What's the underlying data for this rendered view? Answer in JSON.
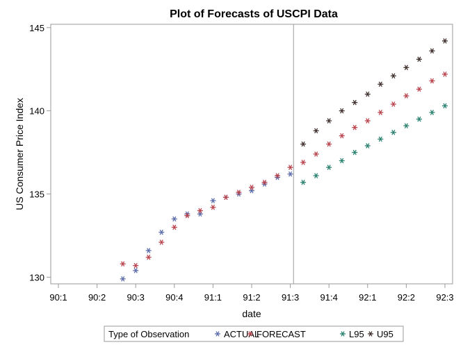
{
  "chart_data": {
    "type": "scatter",
    "title": "Plot of Forecasts of USCPI Data",
    "xlabel": "date",
    "ylabel": "US Consumer Price Index",
    "xlim": [
      0,
      30
    ],
    "ylim": [
      129.6,
      145.2
    ],
    "x_ticks": [
      {
        "pos": 0,
        "label": "90:1"
      },
      {
        "pos": 3,
        "label": "90:2"
      },
      {
        "pos": 6,
        "label": "90:3"
      },
      {
        "pos": 9,
        "label": "90:4"
      },
      {
        "pos": 12,
        "label": "91:1"
      },
      {
        "pos": 15,
        "label": "91:2"
      },
      {
        "pos": 18,
        "label": "91:3"
      },
      {
        "pos": 21,
        "label": "91:4"
      },
      {
        "pos": 24,
        "label": "92:1"
      },
      {
        "pos": 27,
        "label": "92:2"
      },
      {
        "pos": 30,
        "label": "92:3"
      }
    ],
    "y_ticks": [
      130,
      135,
      140,
      145
    ],
    "reference_line_x": 18.25,
    "legend": {
      "title": "Type of Observation",
      "position": "bottom"
    },
    "series": [
      {
        "name": "ACTUAL",
        "color": "#5a6bab",
        "x": [
          5,
          6,
          7,
          8,
          9,
          10,
          11,
          12,
          13,
          14,
          15,
          16,
          17,
          18
        ],
        "y": [
          129.9,
          130.4,
          131.6,
          132.7,
          133.5,
          133.8,
          133.8,
          134.6,
          134.8,
          135.0,
          135.2,
          135.6,
          136.0,
          136.2
        ]
      },
      {
        "name": "FORECAST",
        "color": "#b8434c",
        "x": [
          5,
          6,
          7,
          8,
          9,
          10,
          11,
          12,
          13,
          14,
          15,
          16,
          17,
          18,
          19,
          20,
          21,
          22,
          23,
          24,
          25,
          26,
          27,
          28,
          29,
          30
        ],
        "y": [
          130.8,
          130.7,
          131.2,
          132.1,
          133.0,
          133.7,
          134.0,
          134.2,
          134.8,
          135.1,
          135.4,
          135.7,
          136.1,
          136.6,
          136.9,
          137.4,
          138.0,
          138.5,
          139.0,
          139.4,
          139.9,
          140.4,
          140.9,
          141.3,
          141.8,
          142.2
        ]
      },
      {
        "name": "L95",
        "color": "#28806e",
        "x": [
          19,
          20,
          21,
          22,
          23,
          24,
          25,
          26,
          27,
          28,
          29,
          30
        ],
        "y": [
          135.7,
          136.1,
          136.6,
          137.0,
          137.5,
          137.9,
          138.3,
          138.7,
          139.1,
          139.5,
          139.9,
          140.3
        ]
      },
      {
        "name": "U95",
        "color": "#3e2f2c",
        "x": [
          19,
          20,
          21,
          22,
          23,
          24,
          25,
          26,
          27,
          28,
          29,
          30
        ],
        "y": [
          138.0,
          138.8,
          139.4,
          140.0,
          140.5,
          141.0,
          141.6,
          142.1,
          142.6,
          143.1,
          143.6,
          144.2
        ]
      }
    ]
  }
}
